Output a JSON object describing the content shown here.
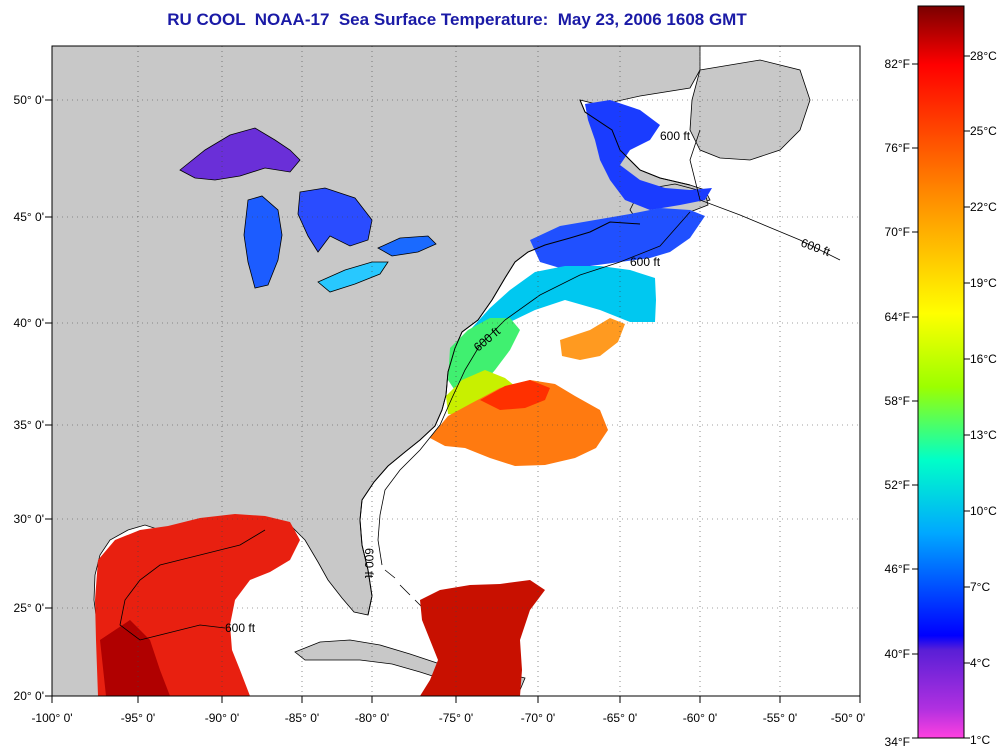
{
  "title": "RU COOL  NOAA-17  Sea Surface Temperature:  May 23, 2006 1608 GMT",
  "map": {
    "longitude_ticks": [
      "-100° 0'",
      "-95° 0'",
      "-90° 0'",
      "-85° 0'",
      "-80° 0'",
      "-75° 0'",
      "-70° 0'",
      "-65° 0'",
      "-60° 0'",
      "-55° 0'",
      "-50° 0'"
    ],
    "latitude_ticks": [
      "50° 0'",
      "45° 0'",
      "40° 0'",
      "35° 0'",
      "30° 0'",
      "25° 0'",
      "20° 0'"
    ],
    "contour_label": "600 ft",
    "colors": {
      "land": "#c8c8c8",
      "water_no_data": "#ffffff",
      "coast": "#000000"
    }
  },
  "colorbar": {
    "fahrenheit_labels": [
      "82°F",
      "76°F",
      "70°F",
      "64°F",
      "58°F",
      "52°F",
      "46°F",
      "40°F",
      "34°F"
    ],
    "celsius_labels": [
      "28°C",
      "25°C",
      "22°C",
      "19°C",
      "16°C",
      "13°C",
      "10°C",
      "7°C",
      "4°C",
      "1°C"
    ],
    "gradient": [
      "#8b0000",
      "#ff0000",
      "#ff8000",
      "#ffff00",
      "#80ff00",
      "#00ffc0",
      "#00a0ff",
      "#0000ff",
      "#7f00ff",
      "#ff3fd0"
    ]
  }
}
